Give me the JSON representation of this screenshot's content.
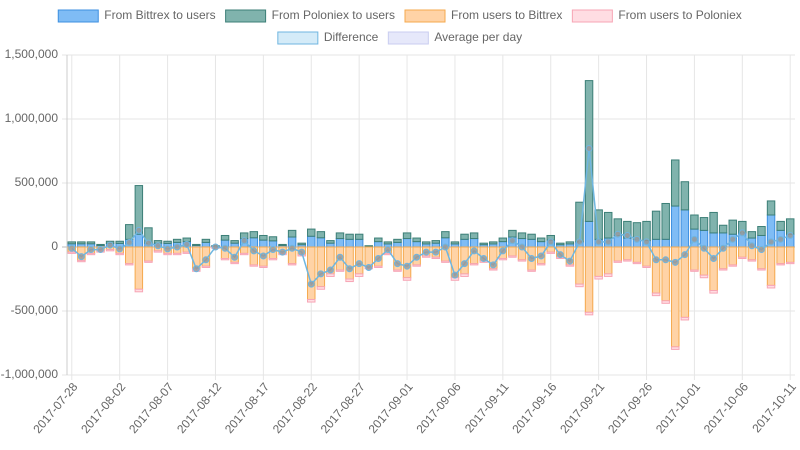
{
  "chart_data": {
    "type": "bar",
    "categories": [
      "2017-07-28",
      null,
      null,
      null,
      null,
      "2017-08-02",
      null,
      null,
      null,
      null,
      "2017-08-07",
      null,
      null,
      null,
      null,
      "2017-08-12",
      null,
      null,
      null,
      null,
      "2017-08-17",
      null,
      null,
      null,
      null,
      "2017-08-22",
      null,
      null,
      null,
      null,
      "2017-08-27",
      null,
      null,
      null,
      null,
      "2017-09-01",
      null,
      null,
      null,
      null,
      "2017-09-06",
      null,
      null,
      null,
      null,
      "2017-09-11",
      null,
      null,
      null,
      null,
      "2017-09-16",
      null,
      null,
      null,
      null,
      "2017-09-21",
      null,
      null,
      null,
      null,
      "2017-09-26",
      null,
      null,
      null,
      null,
      "2017-10-01",
      null,
      null,
      null,
      null,
      "2017-10-06",
      null,
      null,
      null,
      null,
      "2017-10-11"
    ],
    "series": [
      {
        "name": "From Bittrex to users",
        "kind": "bar",
        "stack": "in",
        "color": "#7fbcf5",
        "border": "#3d8fe0",
        "values": [
          25000,
          25000,
          25000,
          12000,
          28000,
          28000,
          60000,
          100000,
          30000,
          30000,
          28000,
          36000,
          42000,
          12000,
          36000,
          6000,
          54000,
          30000,
          66000,
          72000,
          54000,
          48000,
          12000,
          78000,
          18000,
          84000,
          72000,
          30000,
          66000,
          60000,
          60000,
          6000,
          42000,
          24000,
          36000,
          66000,
          42000,
          24000,
          30000,
          72000,
          24000,
          60000,
          66000,
          18000,
          24000,
          42000,
          78000,
          66000,
          60000,
          42000,
          54000,
          18000,
          24000,
          40000,
          200000,
          60000,
          70000,
          90000,
          70000,
          60000,
          50000,
          60000,
          60000,
          320000,
          290000,
          140000,
          130000,
          110000,
          110000,
          100000,
          110000,
          70000,
          90000,
          250000,
          130000,
          100000
        ]
      },
      {
        "name": "From Poloniex to users",
        "kind": "bar",
        "stack": "in",
        "color": "#80b3ad",
        "border": "#3c7f77",
        "values": [
          15000,
          15000,
          15000,
          8000,
          17000,
          17000,
          115000,
          380000,
          120000,
          20000,
          17000,
          24000,
          28000,
          8000,
          24000,
          4000,
          36000,
          20000,
          44000,
          48000,
          36000,
          32000,
          8000,
          52000,
          12000,
          56000,
          48000,
          20000,
          44000,
          40000,
          40000,
          4000,
          28000,
          16000,
          24000,
          44000,
          28000,
          16000,
          20000,
          48000,
          16000,
          40000,
          44000,
          12000,
          16000,
          28000,
          52000,
          44000,
          40000,
          28000,
          36000,
          12000,
          16000,
          310000,
          1100000,
          230000,
          200000,
          130000,
          130000,
          130000,
          150000,
          220000,
          280000,
          360000,
          220000,
          110000,
          100000,
          160000,
          60000,
          110000,
          90000,
          50000,
          70000,
          110000,
          70000,
          120000
        ]
      },
      {
        "name": "From users to Bittrex",
        "kind": "bar",
        "stack": "out",
        "color": "#ffd3a6",
        "border": "#f5a94d",
        "values": [
          -40000,
          -105000,
          -50000,
          -30000,
          -20000,
          -50000,
          -130000,
          -330000,
          -110000,
          -30000,
          -50000,
          -50000,
          -40000,
          -170000,
          -150000,
          0,
          -90000,
          -120000,
          -50000,
          -140000,
          -150000,
          -90000,
          -50000,
          -130000,
          -60000,
          -410000,
          -310000,
          -210000,
          -180000,
          -250000,
          -210000,
          -160000,
          -150000,
          -50000,
          -180000,
          -240000,
          -140000,
          -70000,
          -80000,
          -110000,
          -240000,
          -210000,
          -130000,
          -110000,
          -170000,
          -90000,
          -70000,
          -100000,
          -180000,
          -130000,
          -40000,
          -80000,
          -140000,
          -290000,
          -510000,
          -230000,
          -210000,
          -110000,
          -100000,
          -120000,
          -150000,
          -360000,
          -420000,
          -780000,
          -550000,
          -180000,
          -220000,
          -340000,
          -170000,
          -140000,
          -80000,
          -100000,
          -170000,
          -300000,
          -130000,
          -120000
        ]
      },
      {
        "name": "From users to Poloniex",
        "kind": "bar",
        "stack": "out",
        "color": "#ffdde3",
        "border": "#f7a5b5",
        "values": [
          -10000,
          -10000,
          -10000,
          -10000,
          -10000,
          -10000,
          -10000,
          -20000,
          -10000,
          -10000,
          -10000,
          -10000,
          -10000,
          -20000,
          -10000,
          -10000,
          -10000,
          -10000,
          -10000,
          -10000,
          -10000,
          -10000,
          -10000,
          -10000,
          -10000,
          -20000,
          -20000,
          -20000,
          -10000,
          -20000,
          -20000,
          -10000,
          -10000,
          -10000,
          -10000,
          -20000,
          -10000,
          -10000,
          -10000,
          -10000,
          -20000,
          -20000,
          -10000,
          -10000,
          -10000,
          -10000,
          -10000,
          -10000,
          -10000,
          -10000,
          -10000,
          -10000,
          -10000,
          -20000,
          -20000,
          -20000,
          -20000,
          -10000,
          -10000,
          -10000,
          -10000,
          -20000,
          -20000,
          -20000,
          -20000,
          -10000,
          -20000,
          -20000,
          -10000,
          -10000,
          -10000,
          -10000,
          -10000,
          -20000,
          -10000,
          -10000
        ]
      },
      {
        "name": "Difference",
        "kind": "line",
        "color": "#d4ebf8",
        "border": "#6fb6e0",
        "point_color": "#999999",
        "values": [
          -10000,
          -75000,
          -20000,
          -20000,
          15000,
          -15000,
          35000,
          130000,
          30000,
          10000,
          -15000,
          0,
          20000,
          -170000,
          -100000,
          0,
          -10000,
          -80000,
          50000,
          -30000,
          -70000,
          -20000,
          -40000,
          -10000,
          -40000,
          -290000,
          -210000,
          -180000,
          -80000,
          -170000,
          -130000,
          -160000,
          -90000,
          -20000,
          -130000,
          -150000,
          -80000,
          -40000,
          -40000,
          0,
          -220000,
          -130000,
          -30000,
          -90000,
          -140000,
          -30000,
          50000,
          0,
          -90000,
          -70000,
          40000,
          -60000,
          -110000,
          40000,
          770000,
          40000,
          40000,
          100000,
          90000,
          60000,
          40000,
          -100000,
          -100000,
          -120000,
          -60000,
          60000,
          -10000,
          -90000,
          -10000,
          60000,
          110000,
          10000,
          -20000,
          40000,
          60000,
          90000
        ]
      },
      {
        "name": "Average per day",
        "kind": "line",
        "color": "#e6e8fa",
        "border": "#c9cdf0",
        "values": [
          null,
          null,
          null,
          null,
          null,
          null,
          null,
          null,
          null,
          null,
          null,
          null,
          null,
          null,
          null,
          null,
          null,
          null,
          null,
          null,
          null,
          null,
          null,
          null,
          null,
          null,
          null,
          null,
          null,
          null,
          null,
          null,
          null,
          null,
          null,
          null,
          null,
          null,
          null,
          null,
          null,
          null,
          null,
          null,
          null,
          null,
          null,
          null,
          null,
          null,
          null,
          null,
          null,
          null,
          null,
          null,
          null,
          null,
          null,
          null,
          null,
          null,
          null,
          null,
          null,
          null,
          null,
          null,
          null,
          null,
          null,
          null,
          null,
          null,
          null,
          null
        ]
      }
    ],
    "ylim": [
      -1000000,
      1500000
    ],
    "yticks": [
      {
        "value": -1000000,
        "label": "-1,000,000"
      },
      {
        "value": -500000,
        "label": "-500,000"
      },
      0,
      {
        "value": 500000,
        "label": "500,000"
      },
      {
        "value": 1000000,
        "label": "1,000,000"
      },
      {
        "value": 1500000,
        "label": "1,500,000"
      }
    ],
    "grid": true,
    "legend": "top"
  }
}
